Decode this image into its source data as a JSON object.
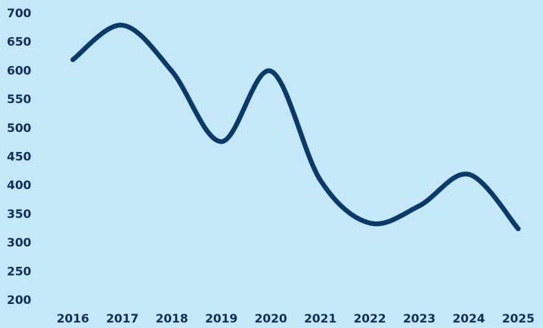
{
  "chart_data": {
    "type": "line",
    "title": "",
    "xlabel": "",
    "ylabel": "",
    "x": [
      "2016",
      "2017",
      "2018",
      "2019",
      "2020",
      "2021",
      "2022",
      "2023",
      "2024",
      "2025"
    ],
    "series": [
      {
        "values": [
          620,
          680,
          600,
          477,
          600,
          410,
          335,
          365,
          420,
          325
        ]
      }
    ],
    "ylim": [
      200,
      700
    ],
    "yticks": [
      700,
      650,
      600,
      550,
      500,
      450,
      400,
      350,
      300,
      250,
      200
    ],
    "grid": false,
    "legend": "none",
    "colors": {
      "background": "#c5e8f9",
      "line": "#0a3a6b",
      "text": "#0f2f5c"
    }
  }
}
